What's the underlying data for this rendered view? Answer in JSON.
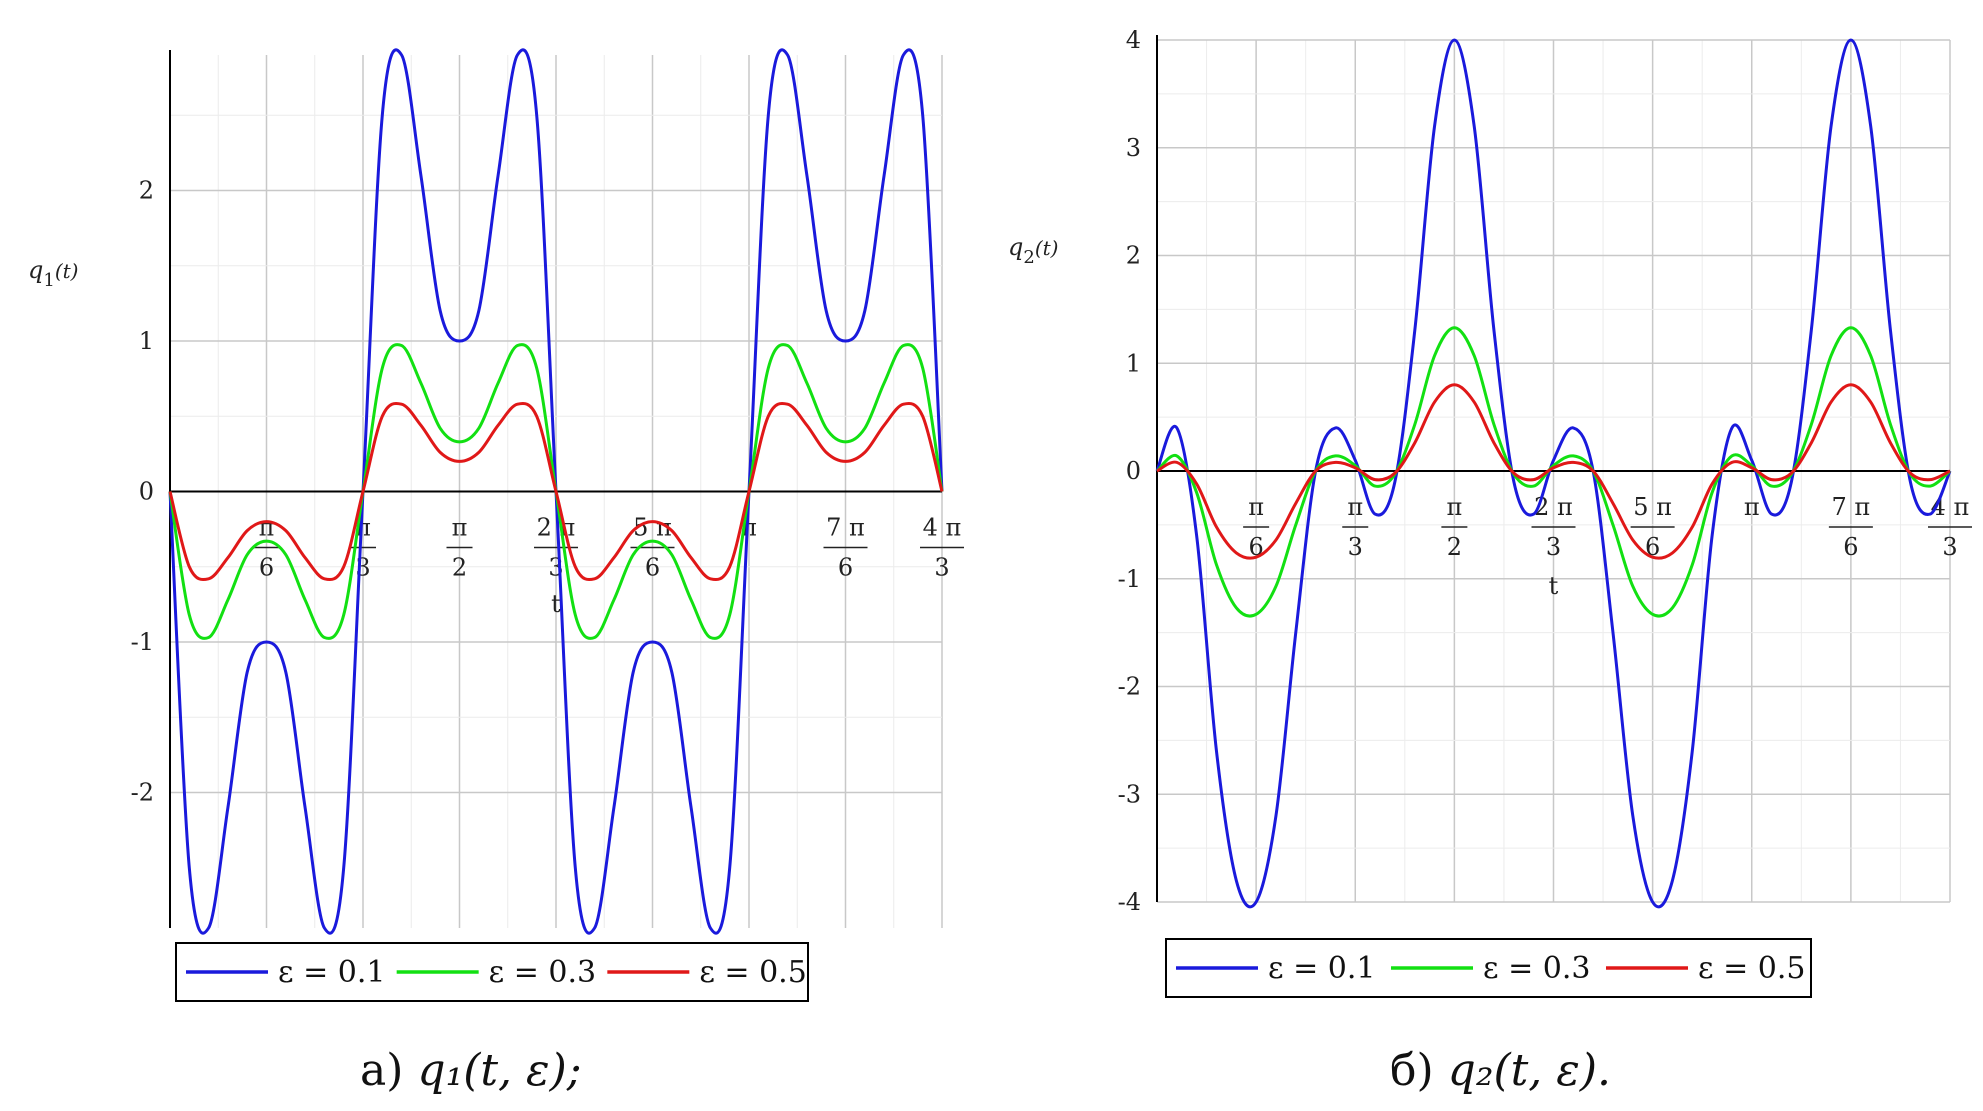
{
  "chart_data": [
    {
      "type": "line",
      "ylabel": "q1(t)",
      "xlabel": "t",
      "xlim": [
        0,
        4.18879
      ],
      "ylim": [
        -2.9,
        2.9
      ],
      "yticks": [
        -2,
        -1,
        0,
        1,
        2
      ],
      "xticks": [
        {
          "value": 0.5236,
          "num": "π",
          "den": "6"
        },
        {
          "value": 1.0472,
          "num": "π",
          "den": "3"
        },
        {
          "value": 1.5708,
          "num": "π",
          "den": "2"
        },
        {
          "value": 2.0944,
          "num": "2 π",
          "den": "3"
        },
        {
          "value": 2.618,
          "num": "5 π",
          "den": "6"
        },
        {
          "value": 3.1416,
          "num": "π",
          "den": ""
        },
        {
          "value": 3.6652,
          "num": "7 π",
          "den": "6"
        },
        {
          "value": 4.1888,
          "num": "4 π",
          "den": "3"
        }
      ],
      "grid": true,
      "legend_position": "bottom",
      "series": [
        {
          "name": "ε = 0.1",
          "color": "#1a1adc",
          "x": [
            0,
            0.1047,
            0.2094,
            0.3142,
            0.4189,
            0.5236,
            0.6283,
            0.733,
            0.8378,
            0.9425,
            1.0472,
            1.1519,
            1.2566,
            1.3614,
            1.4661,
            1.5708,
            1.6755,
            1.7802,
            1.885,
            1.9897,
            2.0944,
            2.1991,
            2.3038,
            2.4086,
            2.5133,
            2.618,
            2.7227,
            2.8274,
            2.9322,
            3.0369,
            3.1416,
            3.2463,
            3.351,
            3.4558,
            3.5605,
            3.6652,
            3.7699,
            3.8746,
            3.9794,
            4.0841,
            4.1888
          ],
          "values": [
            0,
            -2.5,
            -2.9,
            -2.1,
            -1.2,
            -1.0,
            -1.2,
            -2.1,
            -2.9,
            -2.5,
            0,
            2.5,
            2.9,
            2.1,
            1.2,
            1.0,
            1.2,
            2.1,
            2.9,
            2.5,
            0,
            -2.5,
            -2.9,
            -2.1,
            -1.2,
            -1.0,
            -1.2,
            -2.1,
            -2.9,
            -2.5,
            0,
            2.5,
            2.9,
            2.1,
            1.2,
            1.0,
            1.2,
            2.1,
            2.9,
            2.5,
            0
          ]
        },
        {
          "name": "ε = 0.3",
          "color": "#12e012",
          "x": [
            0,
            0.1047,
            0.2094,
            0.3142,
            0.4189,
            0.5236,
            0.6283,
            0.733,
            0.8378,
            0.9425,
            1.0472,
            1.1519,
            1.2566,
            1.3614,
            1.4661,
            1.5708,
            1.6755,
            1.7802,
            1.885,
            1.9897,
            2.0944,
            2.1991,
            2.3038,
            2.4086,
            2.5133,
            2.618,
            2.7227,
            2.8274,
            2.9322,
            3.0369,
            3.1416,
            3.2463,
            3.351,
            3.4558,
            3.5605,
            3.6652,
            3.7699,
            3.8746,
            3.9794,
            4.0841,
            4.1888
          ],
          "values": [
            0,
            -0.82,
            -0.97,
            -0.72,
            -0.42,
            -0.33,
            -0.42,
            -0.72,
            -0.97,
            -0.82,
            0,
            0.82,
            0.97,
            0.72,
            0.42,
            0.33,
            0.42,
            0.72,
            0.97,
            0.82,
            0,
            -0.82,
            -0.97,
            -0.72,
            -0.42,
            -0.33,
            -0.42,
            -0.72,
            -0.97,
            -0.82,
            0,
            0.82,
            0.97,
            0.72,
            0.42,
            0.33,
            0.42,
            0.72,
            0.97,
            0.82,
            0
          ]
        },
        {
          "name": "ε = 0.5",
          "color": "#e01818",
          "x": [
            0,
            0.1047,
            0.2094,
            0.3142,
            0.4189,
            0.5236,
            0.6283,
            0.733,
            0.8378,
            0.9425,
            1.0472,
            1.1519,
            1.2566,
            1.3614,
            1.4661,
            1.5708,
            1.6755,
            1.7802,
            1.885,
            1.9897,
            2.0944,
            2.1991,
            2.3038,
            2.4086,
            2.5133,
            2.618,
            2.7227,
            2.8274,
            2.9322,
            3.0369,
            3.1416,
            3.2463,
            3.351,
            3.4558,
            3.5605,
            3.6652,
            3.7699,
            3.8746,
            3.9794,
            4.0841,
            4.1888
          ],
          "values": [
            0,
            -0.5,
            -0.58,
            -0.44,
            -0.26,
            -0.2,
            -0.26,
            -0.44,
            -0.58,
            -0.5,
            0,
            0.5,
            0.58,
            0.44,
            0.26,
            0.2,
            0.26,
            0.44,
            0.58,
            0.5,
            0,
            -0.5,
            -0.58,
            -0.44,
            -0.26,
            -0.2,
            -0.26,
            -0.44,
            -0.58,
            -0.5,
            0,
            0.5,
            0.58,
            0.44,
            0.26,
            0.2,
            0.26,
            0.44,
            0.58,
            0.5,
            0
          ]
        }
      ]
    },
    {
      "type": "line",
      "ylabel": "q2(t)",
      "xlabel": "t",
      "xlim": [
        0,
        4.18879
      ],
      "ylim": [
        -4,
        4
      ],
      "yticks": [
        -4,
        -3,
        -2,
        -1,
        0,
        1,
        2,
        3,
        4
      ],
      "xticks": [
        {
          "value": 0.5236,
          "num": "π",
          "den": "6"
        },
        {
          "value": 1.0472,
          "num": "π",
          "den": "3"
        },
        {
          "value": 1.5708,
          "num": "π",
          "den": "2"
        },
        {
          "value": 2.0944,
          "num": "2 π",
          "den": "3"
        },
        {
          "value": 2.618,
          "num": "5 π",
          "den": "6"
        },
        {
          "value": 3.1416,
          "num": "π",
          "den": ""
        },
        {
          "value": 3.6652,
          "num": "7 π",
          "den": "6"
        },
        {
          "value": 4.1888,
          "num": "4 π",
          "den": "3"
        }
      ],
      "grid": true,
      "legend_position": "bottom",
      "series": [
        {
          "name": "ε = 0.1",
          "color": "#1a1adc",
          "x": [
            0,
            0.1047,
            0.2094,
            0.3142,
            0.4189,
            0.5236,
            0.6283,
            0.733,
            0.8378,
            0.9425,
            1.0472,
            1.1519,
            1.2566,
            1.3614,
            1.4661,
            1.5708,
            1.6755,
            1.7802,
            1.885,
            1.9897,
            2.0944,
            2.1991,
            2.3038,
            2.4086,
            2.5133,
            2.618,
            2.7227,
            2.8274,
            2.9322,
            3.0369,
            3.1416,
            3.2463,
            3.351,
            3.4558,
            3.5605,
            3.6652,
            3.7699,
            3.8746,
            3.9794,
            4.0841,
            4.1888
          ],
          "values": [
            0,
            0.4,
            -0.6,
            -2.6,
            -3.8,
            -4.0,
            -3.2,
            -1.5,
            0.0,
            0.4,
            0.1,
            -0.4,
            -0.1,
            1.3,
            3.2,
            4.0,
            3.2,
            1.3,
            -0.1,
            -0.4,
            0.1,
            0.4,
            0.0,
            -1.5,
            -3.2,
            -4.0,
            -3.8,
            -2.6,
            -0.6,
            0.4,
            0.1,
            -0.4,
            -0.1,
            1.3,
            3.2,
            4.0,
            3.2,
            1.3,
            -0.1,
            -0.4,
            0
          ]
        },
        {
          "name": "ε = 0.3",
          "color": "#12e012",
          "x": [
            0,
            0.1047,
            0.2094,
            0.3142,
            0.4189,
            0.5236,
            0.6283,
            0.733,
            0.8378,
            0.9425,
            1.0472,
            1.1519,
            1.2566,
            1.3614,
            1.4661,
            1.5708,
            1.6755,
            1.7802,
            1.885,
            1.9897,
            2.0944,
            2.1991,
            2.3038,
            2.4086,
            2.5133,
            2.618,
            2.7227,
            2.8274,
            2.9322,
            3.0369,
            3.1416,
            3.2463,
            3.351,
            3.4558,
            3.5605,
            3.6652,
            3.7699,
            3.8746,
            3.9794,
            4.0841,
            4.1888
          ],
          "values": [
            0,
            0.14,
            -0.2,
            -0.87,
            -1.27,
            -1.33,
            -1.07,
            -0.5,
            0.0,
            0.14,
            0.05,
            -0.14,
            -0.03,
            0.43,
            1.07,
            1.33,
            1.07,
            0.43,
            -0.03,
            -0.14,
            0.05,
            0.14,
            0.0,
            -0.5,
            -1.07,
            -1.33,
            -1.27,
            -0.87,
            -0.2,
            0.14,
            0.05,
            -0.14,
            -0.03,
            0.43,
            1.07,
            1.33,
            1.07,
            0.43,
            -0.03,
            -0.14,
            0
          ]
        },
        {
          "name": "ε = 0.5",
          "color": "#e01818",
          "x": [
            0,
            0.1047,
            0.2094,
            0.3142,
            0.4189,
            0.5236,
            0.6283,
            0.733,
            0.8378,
            0.9425,
            1.0472,
            1.1519,
            1.2566,
            1.3614,
            1.4661,
            1.5708,
            1.6755,
            1.7802,
            1.885,
            1.9897,
            2.0944,
            2.1991,
            2.3038,
            2.4086,
            2.5133,
            2.618,
            2.7227,
            2.8274,
            2.9322,
            3.0369,
            3.1416,
            3.2463,
            3.351,
            3.4558,
            3.5605,
            3.6652,
            3.7699,
            3.8746,
            3.9794,
            4.0841,
            4.1888
          ],
          "values": [
            0,
            0.08,
            -0.12,
            -0.52,
            -0.76,
            -0.8,
            -0.64,
            -0.3,
            0.0,
            0.08,
            0.03,
            -0.08,
            -0.02,
            0.26,
            0.64,
            0.8,
            0.64,
            0.26,
            -0.02,
            -0.08,
            0.03,
            0.08,
            0.0,
            -0.3,
            -0.64,
            -0.8,
            -0.76,
            -0.52,
            -0.12,
            0.08,
            0.03,
            -0.08,
            -0.02,
            0.26,
            0.64,
            0.8,
            0.64,
            0.26,
            -0.02,
            -0.08,
            0
          ]
        }
      ]
    }
  ],
  "captions": {
    "left_prefix": "а)",
    "left_formula": "q₁(t, ε);",
    "right_prefix": "б)",
    "right_formula": "q₂(t, ε)."
  }
}
